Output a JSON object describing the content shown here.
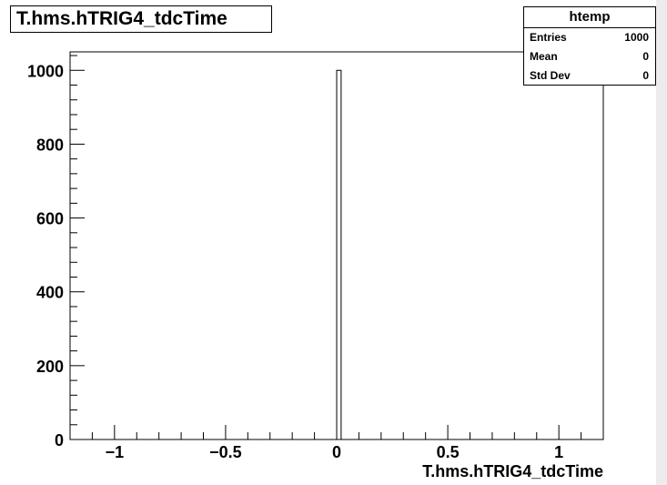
{
  "title": "T.hms.hTRIG4_tdcTime",
  "stats": {
    "name": "htemp",
    "rows": [
      {
        "label": "Entries",
        "value": "1000"
      },
      {
        "label": "Mean",
        "value": "0"
      },
      {
        "label": "Std Dev",
        "value": "0"
      }
    ]
  },
  "chart_data": {
    "type": "bar",
    "title": "T.hms.hTRIG4_tdcTime",
    "xlabel": "T.hms.hTRIG4_tdcTime",
    "ylabel": "",
    "xlim": [
      -1.2,
      1.2
    ],
    "ylim": [
      0,
      1050
    ],
    "x_ticks": [
      -1,
      -0.5,
      0,
      0.5,
      1
    ],
    "x_tick_labels": [
      "−1",
      "−0.5",
      "0",
      "0.5",
      "1"
    ],
    "y_ticks": [
      0,
      200,
      400,
      600,
      800,
      1000
    ],
    "y_tick_labels": [
      "0",
      "200",
      "400",
      "600",
      "800",
      "1000"
    ],
    "bins": [
      {
        "x_low": 0.0,
        "x_high": 0.02,
        "count": 1000
      }
    ],
    "bar_color": "#ffffff",
    "line_color": "#000000",
    "grid": false,
    "legend": "top-right"
  }
}
